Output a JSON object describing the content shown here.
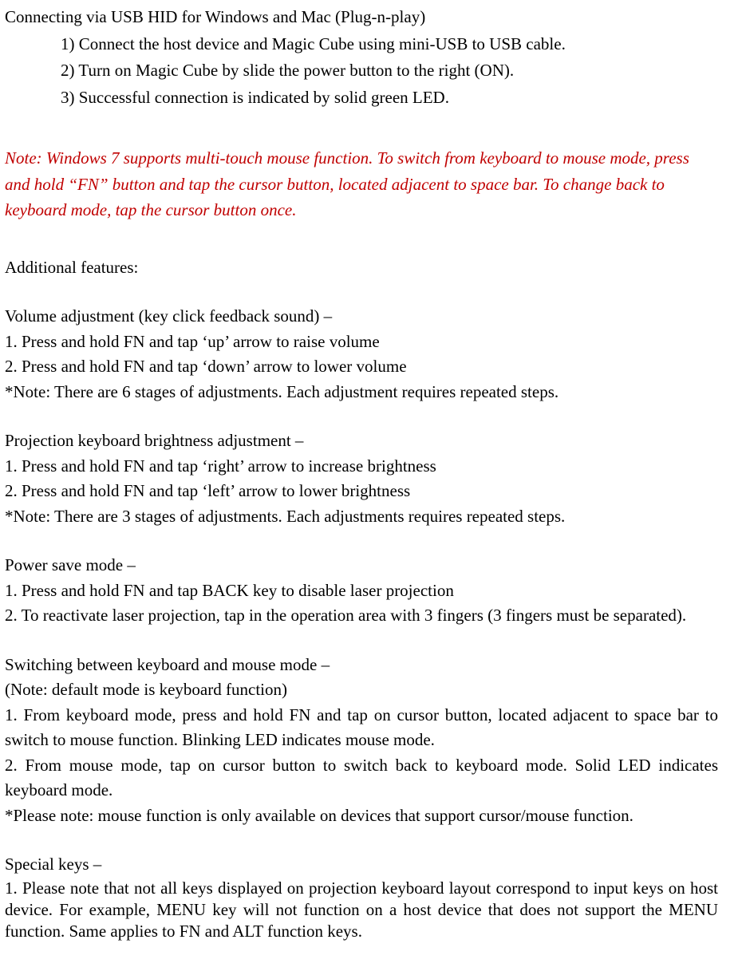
{
  "usb": {
    "heading": "Connecting via USB HID for Windows and Mac (Plug-n-play)",
    "steps": [
      "1) Connect the host device and Magic Cube using mini-USB to USB cable.",
      "2) Turn on Magic Cube by slide the power button to the right (ON).",
      "3) Successful connection is indicated by solid green LED."
    ]
  },
  "note": "Note: Windows 7 supports multi-touch mouse function. To switch from keyboard to mouse mode, press and hold “FN” button and tap the cursor button, located adjacent to space bar. To change back to keyboard mode, tap the cursor button once.",
  "additional": {
    "heading": "Additional features:"
  },
  "volume": {
    "heading": "Volume adjustment (key click feedback sound) –",
    "line1": "1. Press and hold FN and tap ‘up’ arrow to raise volume",
    "line2": "2. Press and hold FN and tap ‘down’ arrow to lower volume",
    "note": "*Note: There are 6 stages of adjustments. Each adjustment requires repeated steps."
  },
  "brightness": {
    "heading": "Projection keyboard brightness adjustment –",
    "line1": "1. Press and hold FN and tap ‘right’ arrow to increase brightness",
    "line2": "2. Press and hold FN and tap ‘left’ arrow to lower brightness",
    "note": "*Note: There are 3 stages of adjustments. Each adjustments requires repeated steps."
  },
  "powersave": {
    "heading": "Power save mode –",
    "line1": "1. Press and hold FN and tap BACK key to disable laser projection",
    "line2": "2. To reactivate laser projection, tap in the operation area with 3 fingers (3 fingers must be separated)."
  },
  "switching": {
    "heading": "Switching between keyboard and mouse mode –",
    "sub": "(Note: default mode is keyboard function)",
    "line1": "1. From keyboard mode, press and hold FN and tap on cursor button, located adjacent to space bar to switch to mouse function. Blinking LED indicates mouse mode.",
    "line2": "2. From mouse mode, tap on cursor button to switch back to keyboard mode. Solid LED indicates keyboard mode.",
    "note": "*Please note: mouse function is only available on devices that support cursor/mouse function."
  },
  "special": {
    "heading": "Special keys –",
    "line1": "1. Please note that not all keys displayed on projection keyboard layout correspond to input keys on host device. For example, MENU key will not function on a host device that does not support the MENU function. Same applies to FN and ALT function keys."
  }
}
